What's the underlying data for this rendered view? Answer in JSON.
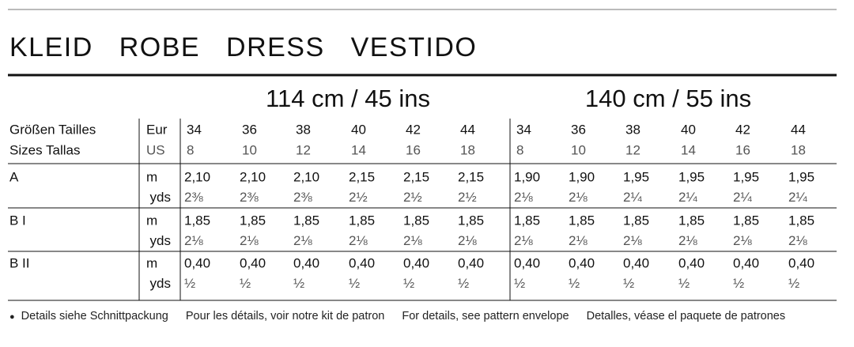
{
  "title": "KLEID ROBE DRESS VESTIDO",
  "table": {
    "widths": [
      "114 cm / 45 ins",
      "140 cm / 55 ins"
    ],
    "size_labels": [
      "Größen Tailles",
      "Sizes Tallas"
    ],
    "size_systems": [
      "Eur",
      "US"
    ],
    "sizes": [
      [
        34,
        36,
        38,
        40,
        42,
        44,
        34,
        36,
        38,
        40,
        42,
        44
      ],
      [
        8,
        10,
        12,
        14,
        16,
        18,
        8,
        10,
        12,
        14,
        16,
        18
      ]
    ],
    "rows": [
      {
        "label": "A",
        "units": [
          "m",
          "yds"
        ],
        "values": [
          [
            "2,10",
            "2,10",
            "2,10",
            "2,15",
            "2,15",
            "2,15",
            "1,90",
            "1,90",
            "1,95",
            "1,95",
            "1,95",
            "1,95"
          ],
          [
            "2⅜",
            "2⅜",
            "2⅜",
            "2½",
            "2½",
            "2½",
            "2⅛",
            "2⅛",
            "2¼",
            "2¼",
            "2¼",
            "2¼"
          ]
        ]
      },
      {
        "label": "B I",
        "units": [
          "m",
          "yds"
        ],
        "values": [
          [
            "1,85",
            "1,85",
            "1,85",
            "1,85",
            "1,85",
            "1,85",
            "1,85",
            "1,85",
            "1,85",
            "1,85",
            "1,85",
            "1,85"
          ],
          [
            "2⅛",
            "2⅛",
            "2⅛",
            "2⅛",
            "2⅛",
            "2⅛",
            "2⅛",
            "2⅛",
            "2⅛",
            "2⅛",
            "2⅛",
            "2⅛"
          ]
        ]
      },
      {
        "label": "B II",
        "units": [
          "m",
          "yds"
        ],
        "values": [
          [
            "0,40",
            "0,40",
            "0,40",
            "0,40",
            "0,40",
            "0,40",
            "0,40",
            "0,40",
            "0,40",
            "0,40",
            "0,40",
            "0,40"
          ],
          [
            "½",
            "½",
            "½",
            "½",
            "½",
            "½",
            "½",
            "½",
            "½",
            "½",
            "½",
            "½"
          ]
        ]
      }
    ]
  },
  "footnote": [
    "Details siehe Schnittpackung",
    "Pour les détails, voir notre kit de patron",
    "For details, see pattern envelope",
    "Detalles, véase el paquete de patrones"
  ]
}
